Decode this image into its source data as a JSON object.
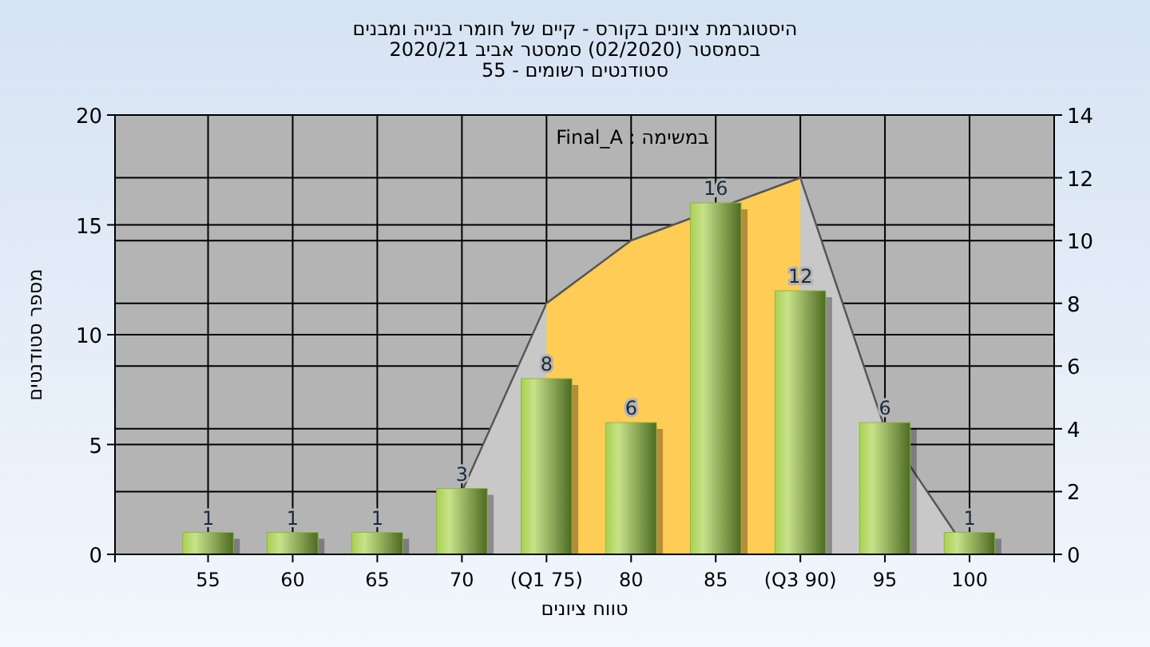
{
  "chart_data": {
    "type": "bar",
    "title": "היסטוגרמת ציונים בקורס - קיים של חומרי בנייה ומבנים",
    "subtitle": "בסמסטר  (02/2020)  סמסטר אביב 2020/21\nסטודנטים רשומים - 55",
    "xlabel": "טווח ציונים",
    "ylabel": "מספר סטודנטים",
    "annotations": [
      "במשימה : Final_A"
    ],
    "categories": [
      "55",
      "60",
      "65",
      "70",
      "(Q1 75)",
      "80",
      "85",
      "(Q3 90)",
      "95",
      "100"
    ],
    "series": [
      {
        "type": "area",
        "axis": "y2",
        "color": "#c8c8c8",
        "values": [
          null,
          null,
          null,
          2,
          8,
          10,
          null,
          12,
          4,
          0
        ]
      },
      {
        "type": "area",
        "axis": "y2",
        "color": "#ffcc55",
        "values": [
          null,
          null,
          null,
          null,
          8,
          10,
          null,
          12,
          null,
          null
        ]
      },
      {
        "color": "#8db840",
        "values": [
          1,
          1,
          1,
          3,
          8,
          6,
          16,
          12,
          6,
          1
        ],
        "value_labels": [
          "1",
          "1",
          "1",
          "3",
          "8",
          "6",
          "16",
          "12",
          "6",
          "1"
        ]
      }
    ],
    "ylim": [
      0,
      20
    ],
    "yticks": [
      0,
      5,
      10,
      15,
      20
    ],
    "y2lim": [
      0,
      14
    ],
    "y2ticks": [
      0,
      2,
      4,
      6,
      8,
      10,
      12,
      14
    ],
    "grid": true
  }
}
